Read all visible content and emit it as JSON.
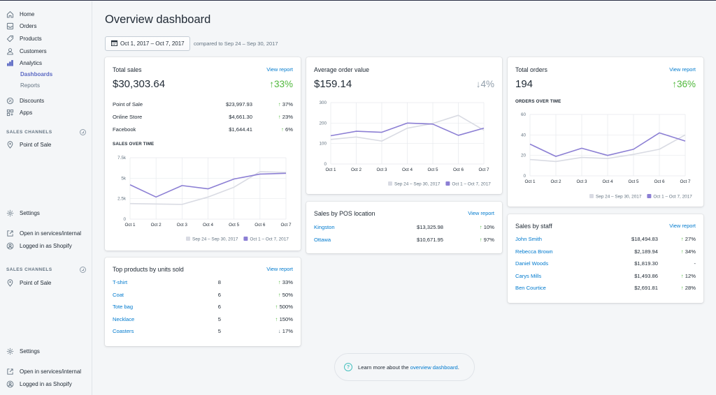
{
  "sidebar": {
    "nav": [
      {
        "label": "Home",
        "icon": "home-icon"
      },
      {
        "label": "Orders",
        "icon": "orders-icon"
      },
      {
        "label": "Products",
        "icon": "tag-icon"
      },
      {
        "label": "Customers",
        "icon": "customer-icon"
      },
      {
        "label": "Analytics",
        "icon": "analytics-icon"
      }
    ],
    "sub": [
      "Dashboards",
      "Reports"
    ],
    "nav2": [
      {
        "label": "Discounts",
        "icon": "discount-icon"
      },
      {
        "label": "Apps",
        "icon": "apps-icon"
      }
    ],
    "sales_channels": "SALES CHANNELS",
    "pos": "Point of Sale",
    "settings": "Settings",
    "open_internal": "Open in services/internal",
    "logged_in": "Logged in as Shopify"
  },
  "page": {
    "title": "Overview dashboard",
    "date_range": "Oct 1, 2017 – Oct 7, 2017",
    "compare": "compared to Sep 24 – Sep 30, 2017"
  },
  "total_sales": {
    "title": "Total sales",
    "link": "View report",
    "value": "$30,303.64",
    "pct": "33%",
    "rows": [
      {
        "name": "Point of Sale",
        "value": "$23,997.93",
        "pct": "37%"
      },
      {
        "name": "Online Store",
        "value": "$4,661.30",
        "pct": "23%"
      },
      {
        "name": "Facebook",
        "value": "$1,644.41",
        "pct": "6%"
      }
    ],
    "chart_label": "SALES OVER TIME"
  },
  "top_products": {
    "title": "Top products by units sold",
    "link": "View report",
    "rows": [
      {
        "name": "T-shirt",
        "units": "8",
        "pct": "33%",
        "dir": "up"
      },
      {
        "name": "Coat",
        "units": "6",
        "pct": "50%",
        "dir": "up"
      },
      {
        "name": "Tote bag",
        "units": "6",
        "pct": "500%",
        "dir": "up"
      },
      {
        "name": "Necklace",
        "units": "5",
        "pct": "150%",
        "dir": "up"
      },
      {
        "name": "Coasters",
        "units": "5",
        "pct": "17%",
        "dir": "down"
      }
    ]
  },
  "avg_order": {
    "title": "Average order value",
    "value": "$159.14",
    "pct": "4%"
  },
  "pos_location": {
    "title": "Sales by POS location",
    "link": "View report",
    "rows": [
      {
        "name": "Kingston",
        "value": "$13,325.98",
        "pct": "10%"
      },
      {
        "name": "Ottawa",
        "value": "$10,671.95",
        "pct": "97%"
      }
    ]
  },
  "total_orders": {
    "title": "Total orders",
    "link": "View report",
    "value": "194",
    "pct": "36%",
    "chart_label": "ORDERS OVER TIME"
  },
  "staff": {
    "title": "Sales by staff",
    "link": "View report",
    "rows": [
      {
        "name": "John Smith",
        "value": "$18,494.83",
        "pct": "27%",
        "dir": "up"
      },
      {
        "name": "Rebecca Brown",
        "value": "$2,189.94",
        "pct": "34%",
        "dir": "up"
      },
      {
        "name": "Daniel Woods",
        "value": "$1,819.30",
        "pct": "-",
        "dir": "none"
      },
      {
        "name": "Carys Mills",
        "value": "$1,493.86",
        "pct": "12%",
        "dir": "up"
      },
      {
        "name": "Ben Courtice",
        "value": "$2,691.81",
        "pct": "28%",
        "dir": "up"
      }
    ]
  },
  "footer": {
    "text": "Learn more about the ",
    "link": "overview dashboard",
    "end": "."
  },
  "colors": {
    "current": "#8c7fd4",
    "previous": "#d9dbe3",
    "up": "#50b83c",
    "link": "#007ace"
  },
  "chart_data": [
    {
      "type": "line",
      "title": "SALES OVER TIME",
      "categories": [
        "Oct 1",
        "Oct 2",
        "Oct 3",
        "Oct 4",
        "Oct 5",
        "Oct 6",
        "Oct 7"
      ],
      "y_ticks": [
        "0",
        "2.5k",
        "5k",
        "7.5k"
      ],
      "ylim": [
        0,
        7500
      ],
      "series": [
        {
          "name": "Sep 24 – Sep 30, 2017",
          "values": [
            1900,
            1850,
            1800,
            2700,
            3900,
            5800,
            5700
          ]
        },
        {
          "name": "Oct 1 – Oct 7, 2017",
          "values": [
            4200,
            2700,
            4100,
            3700,
            4900,
            5500,
            5600
          ]
        }
      ]
    },
    {
      "type": "line",
      "categories": [
        "Oct 1",
        "Oct 2",
        "Oct 3",
        "Oct 4",
        "Oct 5",
        "Oct 6",
        "Oct 7"
      ],
      "y_ticks": [
        "0",
        "100",
        "200",
        "300"
      ],
      "ylim": [
        0,
        300
      ],
      "series": [
        {
          "name": "Sep 24 – Sep 30, 2017",
          "values": [
            120,
            132,
            112,
            175,
            198,
            238,
            165
          ]
        },
        {
          "name": "Oct 1 – Oct 7, 2017",
          "values": [
            138,
            160,
            155,
            200,
            195,
            140,
            175
          ]
        }
      ]
    },
    {
      "type": "line",
      "title": "ORDERS OVER TIME",
      "categories": [
        "Oct 1",
        "Oct 2",
        "Oct 3",
        "Oct 4",
        "Oct 5",
        "Oct 6",
        "Oct 7"
      ],
      "y_ticks": [
        "0",
        "20",
        "40",
        "60"
      ],
      "ylim": [
        0,
        60
      ],
      "series": [
        {
          "name": "Sep 24 – Sep 30, 2017",
          "values": [
            16,
            14,
            18,
            17,
            21,
            26,
            40
          ]
        },
        {
          "name": "Oct 1 – Oct 7, 2017",
          "values": [
            31,
            19,
            27,
            20,
            26,
            42,
            34
          ]
        }
      ]
    }
  ]
}
